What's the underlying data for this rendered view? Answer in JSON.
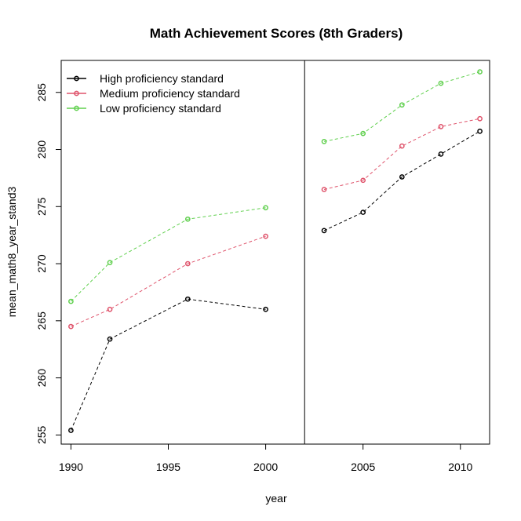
{
  "chart_data": {
    "type": "line",
    "title": "Math Achievement Scores (8th Graders)",
    "xlabel": "year",
    "ylabel": "mean_math8_year_stand3",
    "xlim": [
      1989.5,
      2011.5
    ],
    "ylim": [
      254.2,
      287.8
    ],
    "x_ticks": [
      "1990",
      "1995",
      "2000",
      "2005",
      "2010"
    ],
    "x_tick_values": [
      1990,
      1995,
      2000,
      2005,
      2010
    ],
    "y_ticks": [
      "255",
      "260",
      "265",
      "270",
      "275",
      "280",
      "285"
    ],
    "y_tick_values": [
      255,
      260,
      265,
      270,
      275,
      280,
      285
    ],
    "divider_x": 2002,
    "legend_position": "top-left",
    "series": [
      {
        "name": "High proficiency standard",
        "color": "#000000",
        "segments": [
          {
            "x": [
              1990,
              1992,
              1996,
              2000
            ],
            "y": [
              255.4,
              263.4,
              266.9,
              266.0
            ]
          },
          {
            "x": [
              2003,
              2005,
              2007,
              2009,
              2011
            ],
            "y": [
              272.9,
              274.5,
              277.6,
              279.6,
              281.6
            ]
          }
        ]
      },
      {
        "name": "Medium proficiency standard",
        "color": "#DF536B",
        "segments": [
          {
            "x": [
              1990,
              1992,
              1996,
              2000
            ],
            "y": [
              264.5,
              266.0,
              270.0,
              272.4
            ]
          },
          {
            "x": [
              2003,
              2005,
              2007,
              2009,
              2011
            ],
            "y": [
              276.5,
              277.3,
              280.3,
              282.0,
              282.7
            ]
          }
        ]
      },
      {
        "name": "Low proficiency standard",
        "color": "#61D04F",
        "segments": [
          {
            "x": [
              1990,
              1992,
              1996,
              2000
            ],
            "y": [
              266.7,
              270.1,
              273.9,
              274.9
            ]
          },
          {
            "x": [
              2003,
              2005,
              2007,
              2009,
              2011
            ],
            "y": [
              280.7,
              281.4,
              283.9,
              285.8,
              286.8
            ]
          }
        ]
      }
    ]
  }
}
